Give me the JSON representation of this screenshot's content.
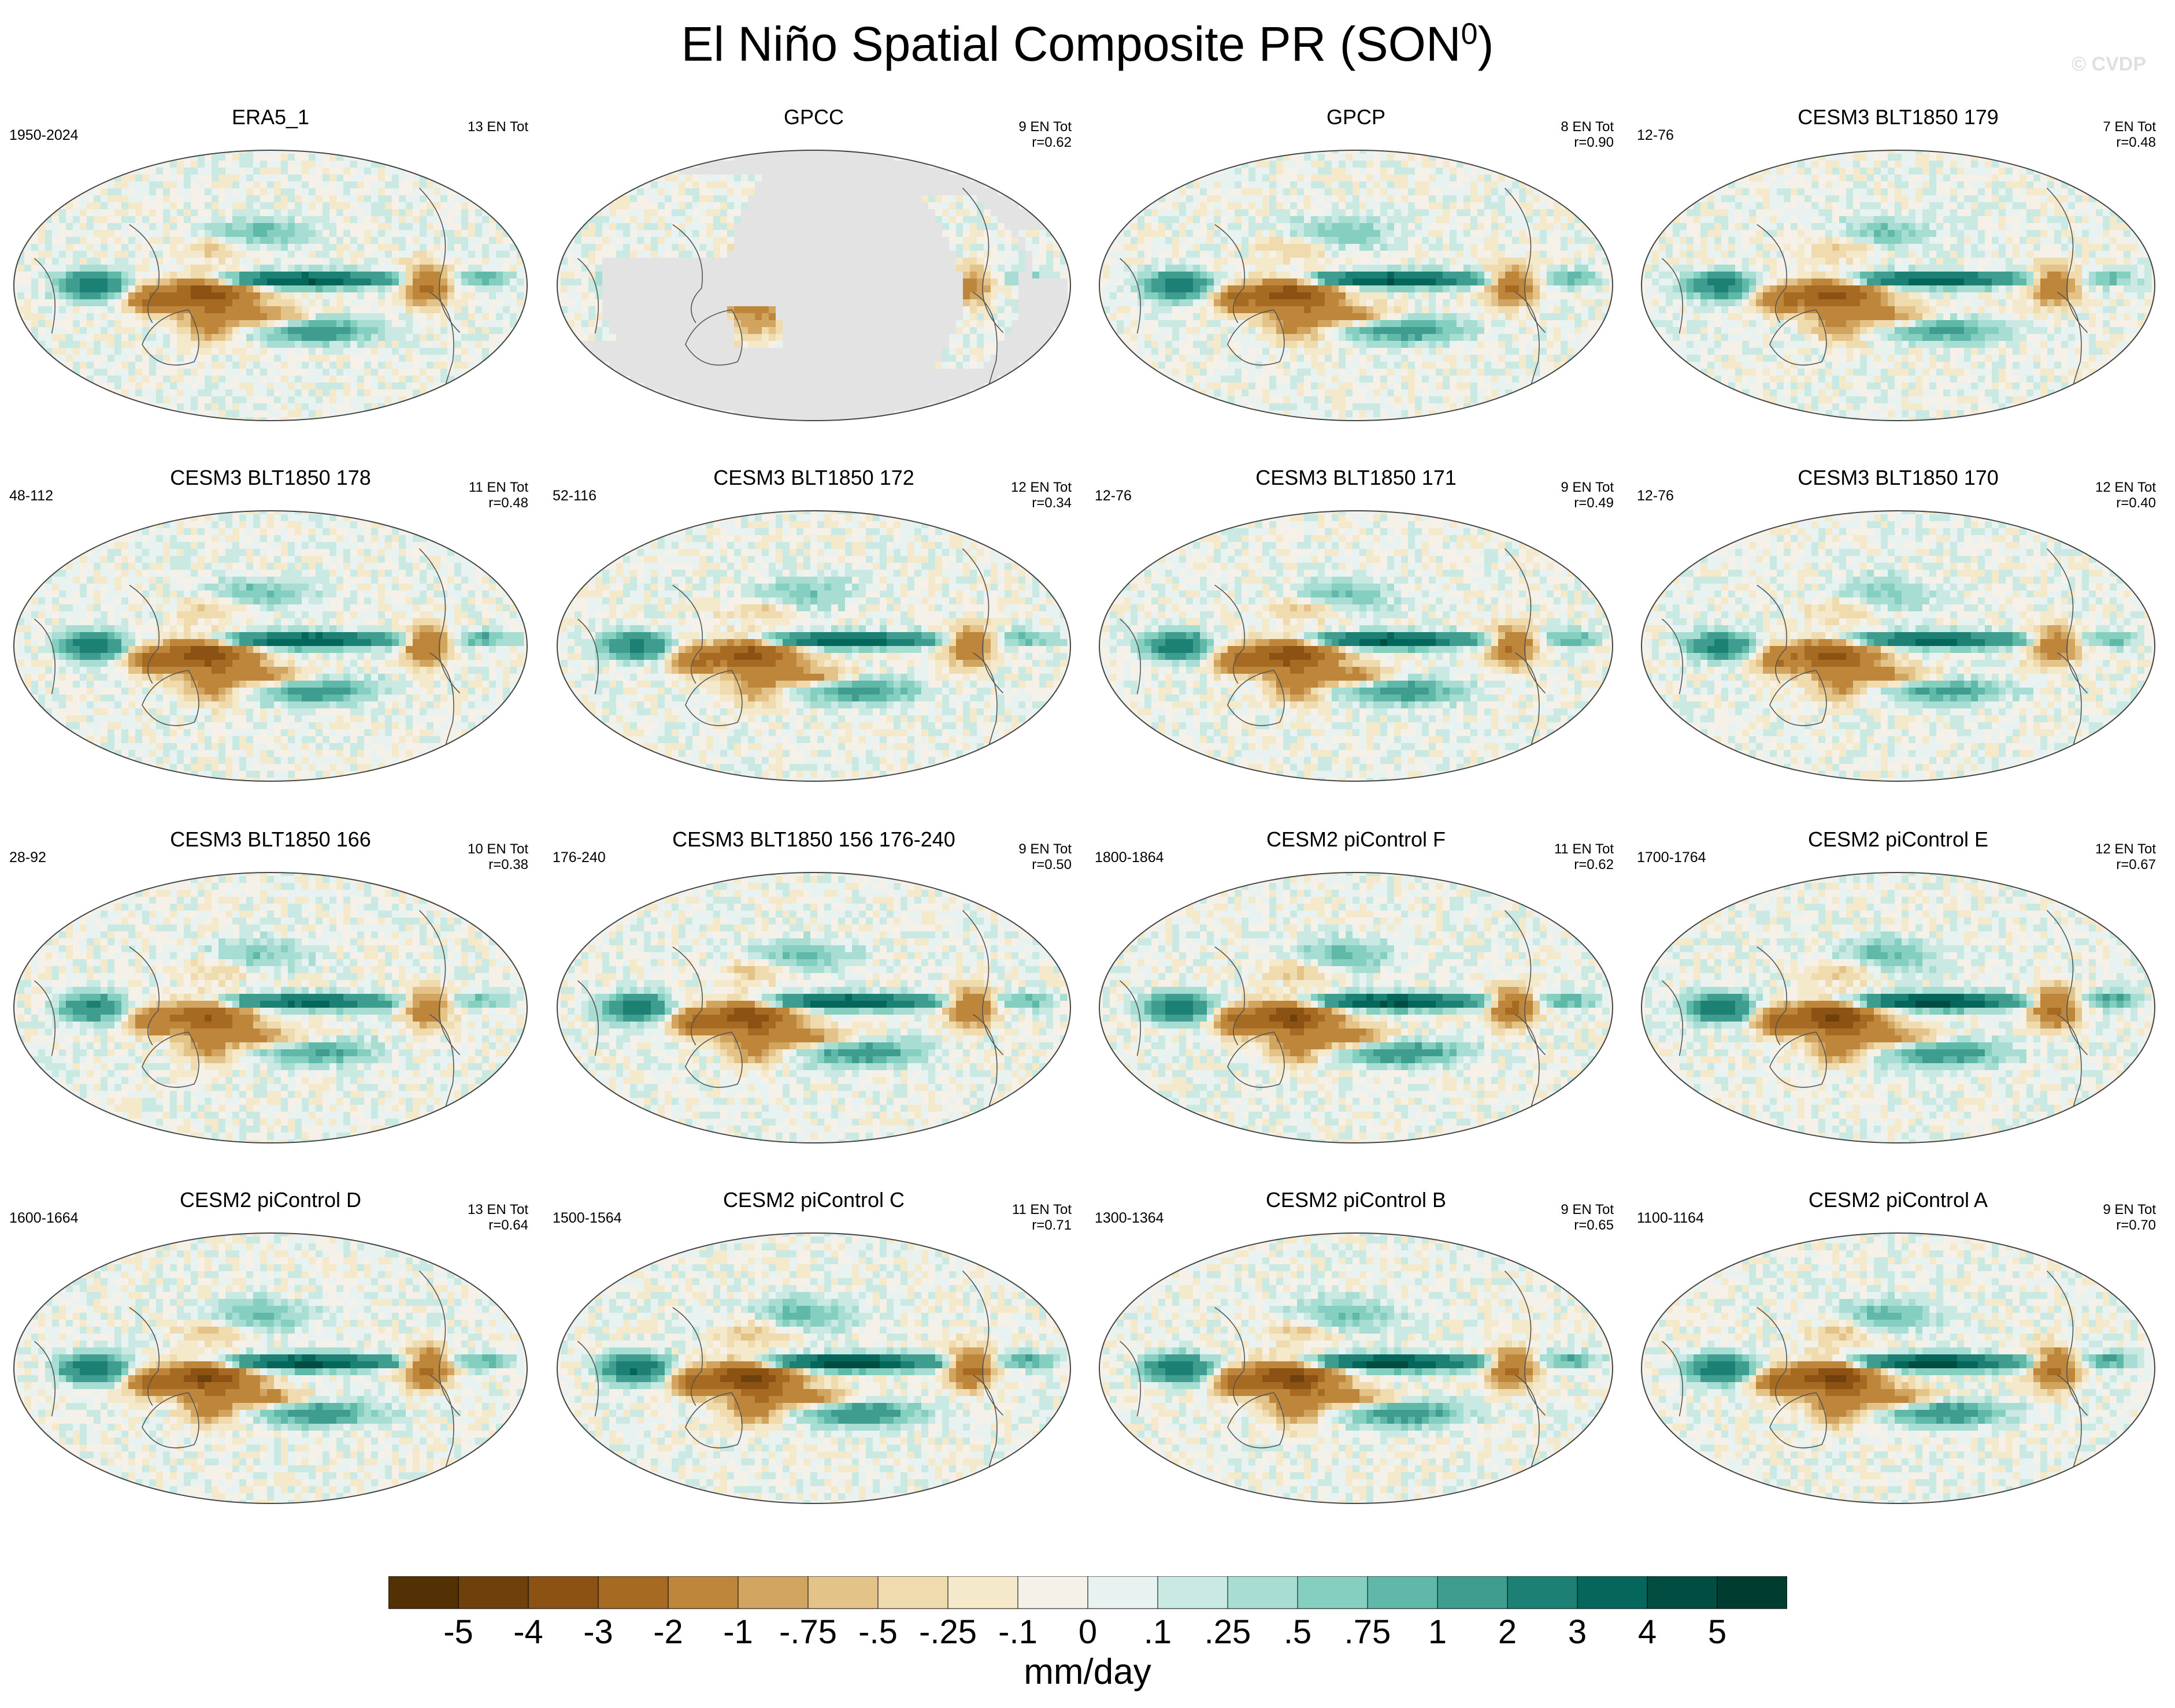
{
  "title": "El Niño Spatial Composite PR (SON",
  "title_sup": "0",
  "title_close": ")",
  "watermark": "© CVDP",
  "chart_data": {
    "type": "heatmap",
    "title": "El Niño Spatial Composite PR (SON0)",
    "units": "mm/day",
    "colorbar": {
      "labels": [
        "-5",
        "-4",
        "-3",
        "-2",
        "-1",
        "-.75",
        "-.5",
        "-.25",
        "-.1",
        "0",
        ".1",
        ".25",
        ".5",
        ".75",
        "1",
        "2",
        "3",
        "4",
        "5"
      ],
      "colors": [
        "#543005",
        "#6e400c",
        "#8c5213",
        "#a66a22",
        "#bd863a",
        "#d1a55f",
        "#e3c387",
        "#efdbae",
        "#f5e9cb",
        "#f5f0e8",
        "#e8f2f0",
        "#c9e9e2",
        "#a8ddd3",
        "#85cfc1",
        "#5fb8a8",
        "#3e9d8f",
        "#1d8075",
        "#05665c",
        "#014d42",
        "#003c30"
      ]
    },
    "panels": [
      {
        "name": "ERA5_1",
        "years": "1950-2024",
        "count": "13 EN Tot",
        "r": "",
        "mask_ocean": false,
        "strength": 1.0,
        "seed": 1
      },
      {
        "name": "GPCC",
        "years": "",
        "count": "9 EN Tot",
        "r": "r=0.62",
        "mask_ocean": true,
        "strength": 0.6,
        "seed": 2
      },
      {
        "name": "GPCP",
        "years": "",
        "count": "8 EN Tot",
        "r": "r=0.90",
        "mask_ocean": false,
        "strength": 1.0,
        "seed": 3
      },
      {
        "name": "CESM3 BLT1850 179",
        "years": "12-76",
        "count": "7 EN Tot",
        "r": "r=0.48",
        "mask_ocean": false,
        "strength": 0.9,
        "seed": 4
      },
      {
        "name": "CESM3 BLT1850 178",
        "years": "48-112",
        "count": "11 EN Tot",
        "r": "r=0.48",
        "mask_ocean": false,
        "strength": 1.0,
        "seed": 5
      },
      {
        "name": "CESM3 BLT1850 172",
        "years": "52-116",
        "count": "12 EN Tot",
        "r": "r=0.34",
        "mask_ocean": false,
        "strength": 0.9,
        "seed": 6
      },
      {
        "name": "CESM3 BLT1850 171",
        "years": "12-76",
        "count": "9 EN Tot",
        "r": "r=0.49",
        "mask_ocean": false,
        "strength": 1.0,
        "seed": 7
      },
      {
        "name": "CESM3 BLT1850 170",
        "years": "12-76",
        "count": "12 EN Tot",
        "r": "r=0.40",
        "mask_ocean": false,
        "strength": 0.85,
        "seed": 8
      },
      {
        "name": "CESM3 BLT1850 166",
        "years": "28-92",
        "count": "10 EN Tot",
        "r": "r=0.38",
        "mask_ocean": false,
        "strength": 0.8,
        "seed": 9
      },
      {
        "name": "CESM3 BLT1850 156 176-240",
        "years": "176-240",
        "count": "9 EN Tot",
        "r": "r=0.50",
        "mask_ocean": false,
        "strength": 1.0,
        "seed": 10
      },
      {
        "name": "CESM2 piControl F",
        "years": "1800-1864",
        "count": "11 EN Tot",
        "r": "r=0.62",
        "mask_ocean": false,
        "strength": 1.05,
        "seed": 11
      },
      {
        "name": "CESM2 piControl E",
        "years": "1700-1764",
        "count": "12 EN Tot",
        "r": "r=0.67",
        "mask_ocean": false,
        "strength": 1.1,
        "seed": 12
      },
      {
        "name": "CESM2 piControl D",
        "years": "1600-1664",
        "count": "13 EN Tot",
        "r": "r=0.64",
        "mask_ocean": false,
        "strength": 1.05,
        "seed": 13
      },
      {
        "name": "CESM2 piControl C",
        "years": "1500-1564",
        "count": "11 EN Tot",
        "r": "r=0.71",
        "mask_ocean": false,
        "strength": 1.15,
        "seed": 14
      },
      {
        "name": "CESM2 piControl B",
        "years": "1300-1364",
        "count": "9 EN Tot",
        "r": "r=0.65",
        "mask_ocean": false,
        "strength": 1.1,
        "seed": 15
      },
      {
        "name": "CESM2 piControl A",
        "years": "1100-1164",
        "count": "9 EN Tot",
        "r": "r=0.70",
        "mask_ocean": false,
        "strength": 1.1,
        "seed": 16
      }
    ]
  }
}
